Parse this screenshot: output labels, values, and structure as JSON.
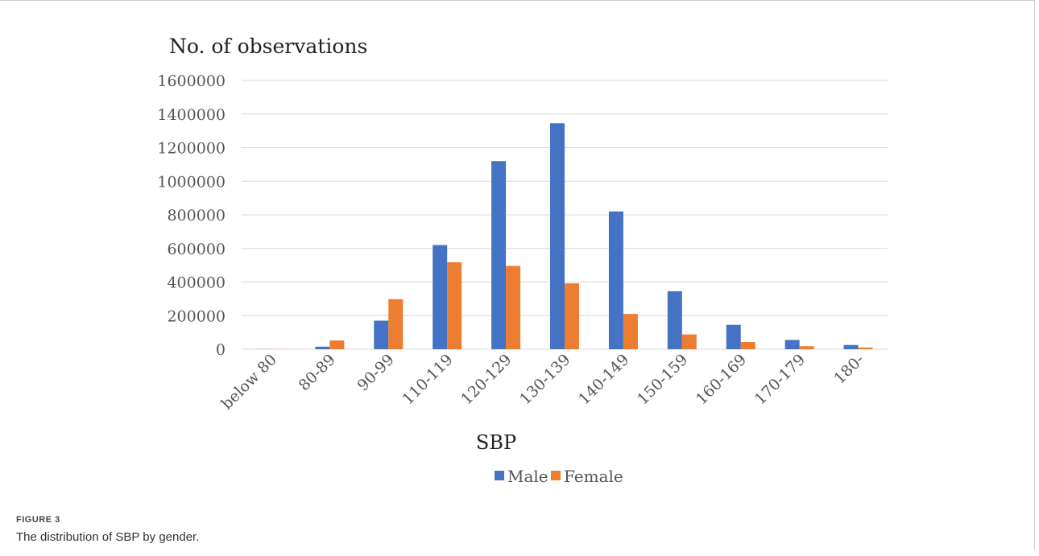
{
  "figure": {
    "label": "FIGURE 3",
    "caption": "The distribution of SBP by gender."
  },
  "chart_data": {
    "type": "bar",
    "title": "No. of observations",
    "xlabel": "SBP",
    "ylabel": "",
    "ylim": [
      0,
      1600000
    ],
    "yticks": [
      "0",
      "200000",
      "400000",
      "600000",
      "800000",
      "1000000",
      "1200000",
      "1400000",
      "1600000"
    ],
    "grid": true,
    "legend_position": "bottom",
    "categories": [
      "below 80",
      "80-89",
      "90-99",
      "110-119",
      "120-129",
      "130-139",
      "140-149",
      "150-159",
      "160-169",
      "170-179",
      "180-"
    ],
    "series": [
      {
        "name": "Male",
        "color": "#4472c4",
        "values": [
          1000,
          15000,
          170000,
          620000,
          1120000,
          1345000,
          820000,
          345000,
          145000,
          55000,
          25000
        ]
      },
      {
        "name": "Female",
        "color": "#ed7d31",
        "values": [
          1000,
          52000,
          298000,
          518000,
          496000,
          392000,
          210000,
          88000,
          43000,
          18000,
          10000
        ]
      }
    ]
  }
}
